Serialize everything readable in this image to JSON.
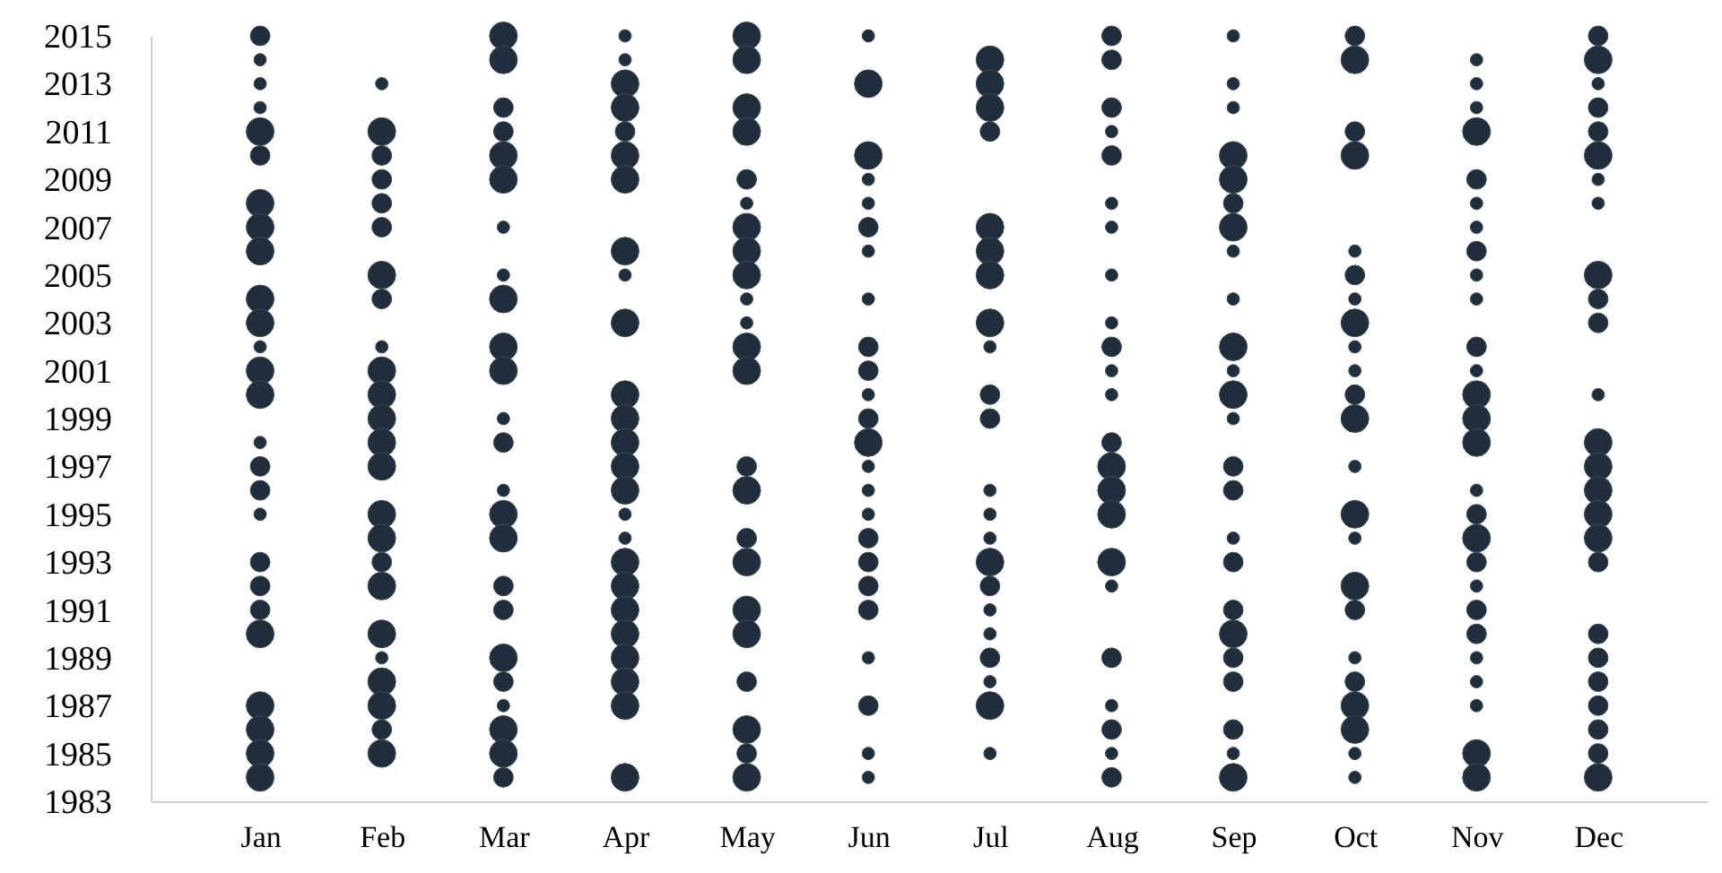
{
  "chart_data": {
    "type": "bubble",
    "categories": [
      "Jan",
      "Feb",
      "Mar",
      "Apr",
      "May",
      "Jun",
      "Jul",
      "Aug",
      "Sep",
      "Oct",
      "Nov",
      "Dec"
    ],
    "ylim": [
      1983,
      2015
    ],
    "yticks": [
      1983,
      1985,
      1987,
      1989,
      1991,
      1993,
      1995,
      1997,
      1999,
      2001,
      2003,
      2005,
      2007,
      2009,
      2011,
      2013,
      2015
    ],
    "grid": false,
    "series": [
      {
        "color": "#1f2e3a",
        "x": [
          "Jan",
          "Jan",
          "Jan",
          "Jan",
          "Jan",
          "Jan",
          "Jan",
          "Jan",
          "Jan",
          "Jan",
          "Jan",
          "Jan",
          "Jan",
          "Jan",
          "Jan",
          "Jan",
          "Jan",
          "Jan",
          "Jan",
          "Jan",
          "Jan",
          "Jan",
          "Jan",
          "Jan",
          "Jan",
          "Jan"
        ],
        "values": [
          2015,
          2014,
          2013,
          2012,
          2011,
          2010,
          2008,
          2007,
          2006,
          2004,
          2003,
          2002,
          2001,
          2000,
          1998,
          1997,
          1996,
          1995,
          1993,
          1992,
          1991,
          1990,
          1987,
          1986,
          1985,
          1984
        ],
        "sizes": [
          0.5,
          0.2,
          0.2,
          0.2,
          1,
          0.5,
          1,
          1,
          1,
          1,
          1,
          0.2,
          1,
          1,
          0.2,
          0.5,
          0.5,
          0.2,
          0.5,
          0.5,
          0.5,
          1,
          1,
          1,
          1,
          1
        ]
      },
      {
        "color": "#1f2e3a",
        "x": [
          "Feb",
          "Feb",
          "Feb",
          "Feb",
          "Feb",
          "Feb",
          "Feb",
          "Feb",
          "Feb",
          "Feb",
          "Feb",
          "Feb",
          "Feb",
          "Feb",
          "Feb",
          "Feb",
          "Feb",
          "Feb",
          "Feb",
          "Feb",
          "Feb",
          "Feb",
          "Feb",
          "Feb"
        ],
        "values": [
          2013,
          2011,
          2010,
          2009,
          2008,
          2007,
          2005,
          2004,
          2002,
          2001,
          2000,
          1999,
          1998,
          1997,
          1995,
          1994,
          1993,
          1992,
          1990,
          1989,
          1988,
          1987,
          1986,
          1985
        ],
        "sizes": [
          0.2,
          1,
          0.5,
          0.5,
          0.5,
          0.5,
          1,
          0.5,
          0.2,
          1,
          1,
          1,
          1,
          1,
          1,
          1,
          0.5,
          1,
          1,
          0.2,
          1,
          1,
          0.5,
          1
        ]
      },
      {
        "color": "#1f2e3a",
        "x": [
          "Mar",
          "Mar",
          "Mar",
          "Mar",
          "Mar",
          "Mar",
          "Mar",
          "Mar",
          "Mar",
          "Mar",
          "Mar",
          "Mar",
          "Mar",
          "Mar",
          "Mar",
          "Mar",
          "Mar",
          "Mar",
          "Mar",
          "Mar",
          "Mar",
          "Mar",
          "Mar",
          "Mar"
        ],
        "values": [
          2015,
          2014,
          2012,
          2011,
          2010,
          2009,
          2007,
          2005,
          2004,
          2002,
          2001,
          1999,
          1998,
          1996,
          1995,
          1994,
          1992,
          1991,
          1989,
          1988,
          1987,
          1986,
          1985,
          1984
        ],
        "sizes": [
          1,
          1,
          0.5,
          0.5,
          1,
          1,
          0.2,
          0.2,
          1,
          1,
          1,
          0.2,
          0.5,
          0.2,
          1,
          1,
          0.5,
          0.5,
          1,
          0.5,
          0.2,
          1,
          1,
          0.5
        ]
      },
      {
        "color": "#1f2e3a",
        "x": [
          "Apr",
          "Apr",
          "Apr",
          "Apr",
          "Apr",
          "Apr",
          "Apr",
          "Apr",
          "Apr",
          "Apr",
          "Apr",
          "Apr",
          "Apr",
          "Apr",
          "Apr",
          "Apr",
          "Apr",
          "Apr",
          "Apr",
          "Apr",
          "Apr",
          "Apr",
          "Apr",
          "Apr",
          "Apr"
        ],
        "values": [
          2015,
          2014,
          2013,
          2012,
          2011,
          2010,
          2009,
          2006,
          2005,
          2003,
          2000,
          1999,
          1998,
          1997,
          1996,
          1995,
          1994,
          1993,
          1992,
          1991,
          1990,
          1989,
          1988,
          1987,
          1984
        ],
        "sizes": [
          0.2,
          0.2,
          1,
          1,
          0.5,
          1,
          1,
          1,
          0.2,
          1,
          1,
          1,
          1,
          1,
          1,
          0.2,
          0.2,
          1,
          1,
          1,
          1,
          1,
          1,
          1,
          1
        ]
      },
      {
        "color": "#1f2e3a",
        "x": [
          "May",
          "May",
          "May",
          "May",
          "May",
          "May",
          "May",
          "May",
          "May",
          "May",
          "May",
          "May",
          "May",
          "May",
          "May",
          "May",
          "May",
          "May",
          "May",
          "May",
          "May",
          "May",
          "May"
        ],
        "values": [
          2015,
          2014,
          2012,
          2011,
          2009,
          2008,
          2007,
          2006,
          2005,
          2004,
          2003,
          2002,
          2001,
          1997,
          1996,
          1994,
          1993,
          1991,
          1990,
          1988,
          1986,
          1985,
          1984
        ],
        "sizes": [
          1,
          1,
          1,
          1,
          0.5,
          0.2,
          1,
          1,
          1,
          0.2,
          0.2,
          1,
          1,
          0.5,
          1,
          0.5,
          1,
          1,
          1,
          0.5,
          1,
          0.5,
          1
        ]
      },
      {
        "color": "#1f2e3a",
        "x": [
          "Jun",
          "Jun",
          "Jun",
          "Jun",
          "Jun",
          "Jun",
          "Jun",
          "Jun",
          "Jun",
          "Jun",
          "Jun",
          "Jun",
          "Jun",
          "Jun",
          "Jun",
          "Jun",
          "Jun",
          "Jun",
          "Jun",
          "Jun",
          "Jun",
          "Jun",
          "Jun",
          "Jun"
        ],
        "values": [
          2015,
          2013,
          2010,
          2009,
          2008,
          2007,
          2006,
          2004,
          2002,
          2001,
          2000,
          1999,
          1998,
          1997,
          1996,
          1995,
          1994,
          1993,
          1992,
          1991,
          1989,
          1987,
          1985,
          1984
        ],
        "sizes": [
          0.2,
          1,
          1,
          0.2,
          0.2,
          0.5,
          0.2,
          0.2,
          0.5,
          0.5,
          0.2,
          0.5,
          1,
          0.2,
          0.2,
          0.2,
          0.5,
          0.5,
          0.5,
          0.5,
          0.2,
          0.5,
          0.2,
          0.2
        ]
      },
      {
        "color": "#1f2e3a",
        "x": [
          "Jul",
          "Jul",
          "Jul",
          "Jul",
          "Jul",
          "Jul",
          "Jul",
          "Jul",
          "Jul",
          "Jul",
          "Jul",
          "Jul",
          "Jul",
          "Jul",
          "Jul",
          "Jul",
          "Jul",
          "Jul",
          "Jul",
          "Jul",
          "Jul",
          "Jul"
        ],
        "values": [
          2014,
          2013,
          2012,
          2011,
          2007,
          2006,
          2005,
          2003,
          2002,
          2000,
          1999,
          1996,
          1995,
          1994,
          1993,
          1992,
          1991,
          1990,
          1989,
          1988,
          1987,
          1985
        ],
        "sizes": [
          1,
          1,
          1,
          0.5,
          1,
          1,
          1,
          1,
          0.2,
          0.5,
          0.5,
          0.2,
          0.2,
          0.2,
          1,
          0.5,
          0.2,
          0.2,
          0.5,
          0.2,
          1,
          0.2
        ]
      },
      {
        "color": "#1f2e3a",
        "x": [
          "Aug",
          "Aug",
          "Aug",
          "Aug",
          "Aug",
          "Aug",
          "Aug",
          "Aug",
          "Aug",
          "Aug",
          "Aug",
          "Aug",
          "Aug",
          "Aug",
          "Aug",
          "Aug",
          "Aug",
          "Aug",
          "Aug",
          "Aug",
          "Aug",
          "Aug",
          "Aug"
        ],
        "values": [
          2015,
          2014,
          2012,
          2011,
          2010,
          2008,
          2007,
          2005,
          2003,
          2002,
          2001,
          2000,
          1998,
          1997,
          1996,
          1995,
          1993,
          1992,
          1989,
          1987,
          1986,
          1985,
          1984
        ],
        "sizes": [
          0.5,
          0.5,
          0.5,
          0.2,
          0.5,
          0.2,
          0.2,
          0.2,
          0.2,
          0.5,
          0.2,
          0.2,
          0.5,
          1,
          1,
          1,
          1,
          0.2,
          0.5,
          0.2,
          0.5,
          0.2,
          0.5
        ]
      },
      {
        "color": "#1f2e3a",
        "x": [
          "Sep",
          "Sep",
          "Sep",
          "Sep",
          "Sep",
          "Sep",
          "Sep",
          "Sep",
          "Sep",
          "Sep",
          "Sep",
          "Sep",
          "Sep",
          "Sep",
          "Sep",
          "Sep",
          "Sep",
          "Sep",
          "Sep",
          "Sep",
          "Sep",
          "Sep",
          "Sep",
          "Sep"
        ],
        "values": [
          2015,
          2013,
          2012,
          2010,
          2009,
          2008,
          2007,
          2006,
          2004,
          2002,
          2001,
          2000,
          1999,
          1997,
          1996,
          1994,
          1993,
          1991,
          1990,
          1989,
          1988,
          1986,
          1985,
          1984
        ],
        "sizes": [
          0.2,
          0.2,
          0.2,
          1,
          1,
          0.5,
          1,
          0.2,
          0.2,
          1,
          0.2,
          1,
          0.2,
          0.5,
          0.5,
          0.2,
          0.5,
          0.5,
          1,
          0.5,
          0.5,
          0.5,
          0.2,
          1
        ]
      },
      {
        "color": "#1f2e3a",
        "x": [
          "Oct",
          "Oct",
          "Oct",
          "Oct",
          "Oct",
          "Oct",
          "Oct",
          "Oct",
          "Oct",
          "Oct",
          "Oct",
          "Oct",
          "Oct",
          "Oct",
          "Oct",
          "Oct",
          "Oct",
          "Oct",
          "Oct",
          "Oct",
          "Oct",
          "Oct",
          "Oct"
        ],
        "values": [
          2015,
          2014,
          2011,
          2010,
          2006,
          2005,
          2004,
          2003,
          2002,
          2001,
          2000,
          1999,
          1997,
          1995,
          1994,
          1992,
          1991,
          1989,
          1988,
          1987,
          1986,
          1985,
          1984
        ],
        "sizes": [
          0.5,
          1,
          0.5,
          1,
          0.2,
          0.5,
          0.2,
          1,
          0.2,
          0.2,
          0.5,
          1,
          0.2,
          1,
          0.2,
          1,
          0.5,
          0.2,
          0.5,
          1,
          1,
          0.2,
          0.2
        ]
      },
      {
        "color": "#1f2e3a",
        "x": [
          "Nov",
          "Nov",
          "Nov",
          "Nov",
          "Nov",
          "Nov",
          "Nov",
          "Nov",
          "Nov",
          "Nov",
          "Nov",
          "Nov",
          "Nov",
          "Nov",
          "Nov",
          "Nov",
          "Nov",
          "Nov",
          "Nov",
          "Nov",
          "Nov",
          "Nov",
          "Nov",
          "Nov",
          "Nov",
          "Nov",
          "Nov"
        ],
        "values": [
          2014,
          2013,
          2012,
          2011,
          2009,
          2008,
          2007,
          2006,
          2005,
          2004,
          2002,
          2001,
          2000,
          1999,
          1998,
          1996,
          1995,
          1994,
          1993,
          1992,
          1991,
          1990,
          1989,
          1988,
          1987,
          1985,
          1984
        ],
        "sizes": [
          0.2,
          0.2,
          0.2,
          1,
          0.5,
          0.2,
          0.2,
          0.5,
          0.2,
          0.2,
          0.5,
          0.2,
          1,
          1,
          1,
          0.2,
          0.5,
          1,
          0.5,
          0.2,
          0.5,
          0.5,
          0.2,
          0.2,
          0.2,
          1,
          1
        ]
      },
      {
        "color": "#1f2e3a",
        "x": [
          "Dec",
          "Dec",
          "Dec",
          "Dec",
          "Dec",
          "Dec",
          "Dec",
          "Dec",
          "Dec",
          "Dec",
          "Dec",
          "Dec",
          "Dec",
          "Dec",
          "Dec",
          "Dec",
          "Dec",
          "Dec",
          "Dec",
          "Dec",
          "Dec",
          "Dec",
          "Dec",
          "Dec",
          "Dec"
        ],
        "values": [
          2015,
          2014,
          2013,
          2012,
          2011,
          2010,
          2009,
          2008,
          2005,
          2004,
          2003,
          2000,
          1998,
          1997,
          1996,
          1995,
          1994,
          1993,
          1990,
          1989,
          1988,
          1987,
          1986,
          1985,
          1984
        ],
        "sizes": [
          0.5,
          1,
          0.2,
          0.5,
          0.5,
          1,
          0.2,
          0.2,
          1,
          0.5,
          0.5,
          0.2,
          1,
          1,
          1,
          1,
          1,
          0.5,
          0.5,
          0.5,
          0.5,
          0.5,
          0.5,
          0.5,
          1
        ]
      }
    ]
  }
}
